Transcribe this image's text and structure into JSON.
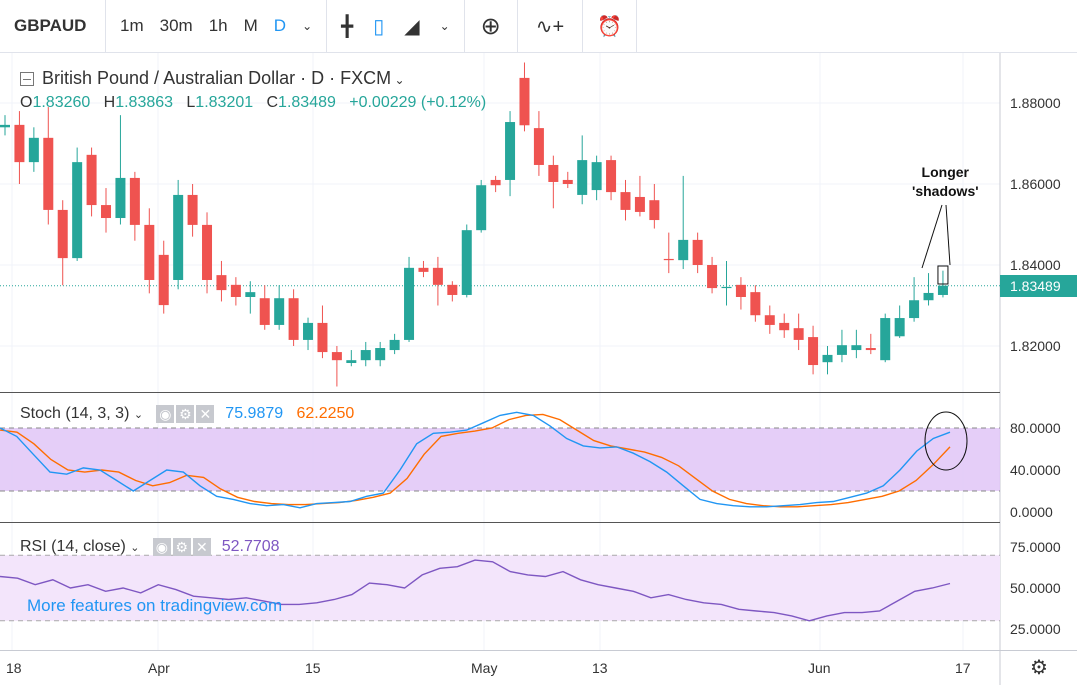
{
  "toolbar": {
    "symbol": "GBPAUD",
    "timeframes": [
      "1m",
      "30m",
      "1h",
      "M",
      "D"
    ],
    "active_timeframe": "D",
    "icons": [
      "bars-icon",
      "candles-icon",
      "area-chart-icon",
      "add-indicator-icon",
      "compare-icon",
      "alert-icon"
    ]
  },
  "legend": {
    "title": "British Pound / Australian Dollar · D · FXCM",
    "o_label": "O",
    "o": "1.83260",
    "h_label": "H",
    "h": "1.83863",
    "l_label": "L",
    "l": "1.83201",
    "c_label": "C",
    "c": "1.83489",
    "change": "+0.00229 (+0.12%)"
  },
  "stoch": {
    "label": "Stoch (14, 3, 3)",
    "k_value": "75.9879",
    "d_value": "62.2250",
    "k_color": "#2196f3",
    "d_color": "#ff6d00",
    "k": [
      80,
      72,
      55,
      38,
      36,
      42,
      40,
      30,
      20,
      30,
      40,
      38,
      25,
      15,
      12,
      8,
      6,
      7,
      4,
      8,
      9,
      10,
      15,
      18,
      40,
      65,
      75,
      76,
      78,
      85,
      92,
      95,
      92,
      82,
      70,
      63,
      61,
      62,
      56,
      48,
      38,
      25,
      12,
      8,
      6,
      5,
      5,
      6,
      7,
      9,
      10,
      14,
      18,
      25,
      40,
      58,
      70,
      76
    ],
    "d": [
      78,
      76,
      65,
      50,
      40,
      38,
      40,
      38,
      30,
      25,
      28,
      35,
      33,
      22,
      14,
      10,
      8,
      7,
      7,
      8,
      9,
      11,
      14,
      18,
      32,
      55,
      72,
      75,
      77,
      80,
      88,
      92,
      93,
      88,
      78,
      68,
      63,
      60,
      57,
      52,
      44,
      32,
      20,
      12,
      8,
      6,
      5,
      5,
      6,
      7,
      9,
      12,
      15,
      20,
      30,
      45,
      62
    ],
    "axis": [
      "80.0000",
      "40.0000",
      "0.0000"
    ]
  },
  "rsi": {
    "label": "RSI (14, close)",
    "value": "52.7708",
    "color": "#7e57c2",
    "values": [
      57,
      56,
      52,
      55,
      50,
      52,
      48,
      50,
      47,
      52,
      49,
      45,
      44,
      43,
      44,
      42,
      40,
      40,
      41,
      43,
      46,
      53,
      52,
      50,
      58,
      62,
      63,
      67,
      66,
      60,
      58,
      57,
      60,
      55,
      52,
      50,
      48,
      44,
      46,
      43,
      41,
      40,
      37,
      36,
      35,
      33,
      30,
      33,
      35,
      35,
      36,
      42,
      48,
      50,
      52.77
    ],
    "axis": [
      "75.0000",
      "50.0000",
      "25.0000"
    ]
  },
  "price_axis": [
    "1.88000",
    "1.86000",
    "1.84000",
    "1.82000"
  ],
  "last_price": "1.83489",
  "time_axis": [
    "18",
    "Apr",
    "15",
    "May",
    "13",
    "Jun",
    "17"
  ],
  "annotation": "Longer\n'shadows'",
  "watermark": "More features on tradingview.com",
  "colors": {
    "up": "#26a69a",
    "down": "#ef5350"
  },
  "candles": [
    [
      1.874,
      1.877,
      1.872,
      1.8746
    ],
    [
      1.8746,
      1.878,
      1.86,
      1.8654
    ],
    [
      1.8654,
      1.874,
      1.863,
      1.8714
    ],
    [
      1.8714,
      1.879,
      1.85,
      1.8536
    ],
    [
      1.8536,
      1.856,
      1.835,
      1.8417
    ],
    [
      1.8417,
      1.869,
      1.841,
      1.8654
    ],
    [
      1.8672,
      1.869,
      1.852,
      1.8548
    ],
    [
      1.8548,
      1.859,
      1.848,
      1.8516
    ],
    [
      1.8516,
      1.877,
      1.85,
      1.8615
    ],
    [
      1.8615,
      1.863,
      1.846,
      1.8499
    ],
    [
      1.8499,
      1.854,
      1.833,
      1.8363
    ],
    [
      1.8425,
      1.846,
      1.828,
      1.8301
    ],
    [
      1.8363,
      1.861,
      1.834,
      1.8573
    ],
    [
      1.8573,
      1.86,
      1.847,
      1.8499
    ],
    [
      1.8499,
      1.853,
      1.833,
      1.8363
    ],
    [
      1.8375,
      1.841,
      1.831,
      1.8338
    ],
    [
      1.8351,
      1.837,
      1.83,
      1.8321
    ],
    [
      1.8321,
      1.836,
      1.828,
      1.8333
    ],
    [
      1.8318,
      1.835,
      1.824,
      1.8252
    ],
    [
      1.8252,
      1.835,
      1.824,
      1.8318
    ],
    [
      1.8318,
      1.834,
      1.82,
      1.8215
    ],
    [
      1.8215,
      1.827,
      1.819,
      1.8257
    ],
    [
      1.8257,
      1.83,
      1.817,
      1.8185
    ],
    [
      1.8185,
      1.82,
      1.81,
      1.8165
    ],
    [
      1.8158,
      1.819,
      1.815,
      1.8165
    ],
    [
      1.8165,
      1.821,
      1.815,
      1.819
    ],
    [
      1.8165,
      1.821,
      1.815,
      1.8195
    ],
    [
      1.819,
      1.823,
      1.818,
      1.8215
    ],
    [
      1.8215,
      1.842,
      1.821,
      1.8393
    ],
    [
      1.8393,
      1.841,
      1.837,
      1.8383
    ],
    [
      1.8393,
      1.842,
      1.83,
      1.8351
    ],
    [
      1.8351,
      1.836,
      1.831,
      1.8326
    ],
    [
      1.8326,
      1.85,
      1.832,
      1.8486
    ],
    [
      1.8486,
      1.861,
      1.848,
      1.8597
    ],
    [
      1.861,
      1.862,
      1.858,
      1.8597
    ],
    [
      1.861,
      1.878,
      1.857,
      1.8753
    ],
    [
      1.8862,
      1.89,
      1.873,
      1.8745
    ],
    [
      1.8738,
      1.878,
      1.862,
      1.8647
    ],
    [
      1.8647,
      1.867,
      1.854,
      1.8605
    ],
    [
      1.861,
      1.863,
      1.859,
      1.86
    ],
    [
      1.8573,
      1.872,
      1.855,
      1.8659
    ],
    [
      1.8585,
      1.867,
      1.856,
      1.8654
    ],
    [
      1.8659,
      1.867,
      1.856,
      1.858
    ],
    [
      1.858,
      1.861,
      1.851,
      1.8536
    ],
    [
      1.8568,
      1.862,
      1.852,
      1.8531
    ],
    [
      1.856,
      1.86,
      1.849,
      1.8511
    ],
    [
      1.8415,
      1.848,
      1.838,
      1.8412
    ],
    [
      1.8412,
      1.862,
      1.839,
      1.8462
    ],
    [
      1.8462,
      1.848,
      1.838,
      1.84
    ],
    [
      1.84,
      1.842,
      1.833,
      1.8343
    ],
    [
      1.8343,
      1.841,
      1.83,
      1.8346
    ],
    [
      1.8351,
      1.837,
      1.829,
      1.8321
    ],
    [
      1.8333,
      1.835,
      1.826,
      1.8276
    ],
    [
      1.8276,
      1.83,
      1.823,
      1.8252
    ],
    [
      1.8257,
      1.828,
      1.822,
      1.8239
    ],
    [
      1.8244,
      1.828,
      1.819,
      1.8215
    ],
    [
      1.8222,
      1.825,
      1.813,
      1.8153
    ],
    [
      1.816,
      1.82,
      1.813,
      1.8178
    ],
    [
      1.8178,
      1.824,
      1.816,
      1.8202
    ],
    [
      1.819,
      1.824,
      1.817,
      1.8202
    ],
    [
      1.8195,
      1.823,
      1.818,
      1.819
    ],
    [
      1.8165,
      1.828,
      1.816,
      1.8269
    ],
    [
      1.8224,
      1.83,
      1.822,
      1.8269
    ],
    [
      1.8269,
      1.837,
      1.826,
      1.8313
    ],
    [
      1.8313,
      1.838,
      1.83,
      1.8331
    ],
    [
      1.8326,
      1.8386,
      1.832,
      1.8349
    ]
  ]
}
